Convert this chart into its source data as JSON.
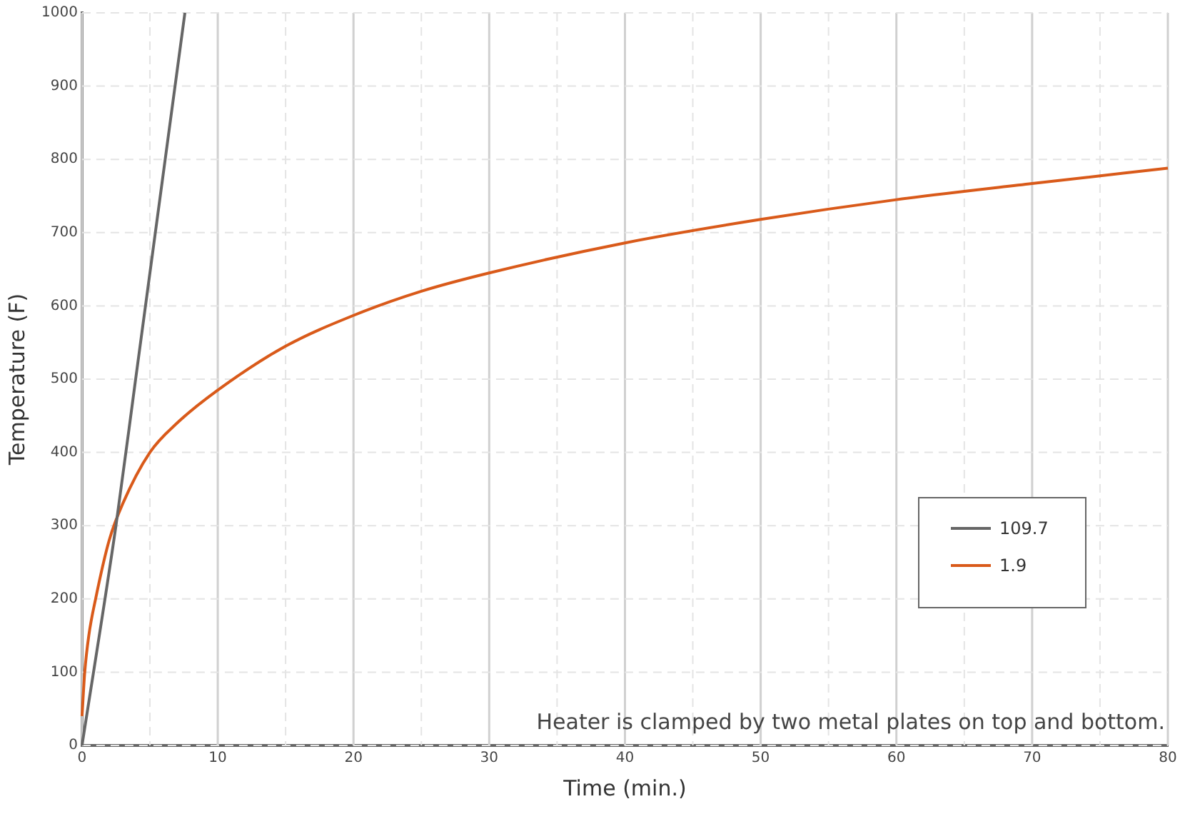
{
  "chart_data": {
    "type": "line",
    "xlabel": "Time (min.)",
    "ylabel": "Temperature (F)",
    "xlim": [
      0,
      80
    ],
    "xticks": [
      0,
      {
        "value": 5,
        "label": null
      },
      10,
      {
        "value": 15,
        "label": null
      },
      20,
      {
        "value": 25,
        "label": null
      },
      30,
      {
        "value": 35,
        "label": null
      },
      40,
      {
        "value": 45,
        "label": null
      },
      50,
      {
        "value": 55,
        "label": null
      },
      60,
      {
        "value": 65,
        "label": null
      },
      70,
      {
        "value": 75,
        "label": null
      },
      80
    ],
    "ylim": [
      0,
      1000
    ],
    "yticks": [
      0,
      100,
      200,
      300,
      400,
      500,
      600,
      700,
      800,
      900,
      1000
    ],
    "grid": true,
    "legend": "right",
    "marker": "none",
    "line_style": "solid",
    "annotations": [
      "Heater is clamped by two metal plates on top and bottom."
    ],
    "series": [
      {
        "name": "109.7",
        "color": "#666666",
        "x": [
          0,
          2.5,
          3.95,
          7.58
        ],
        "values": [
          0,
          300,
          500,
          1000
        ]
      },
      {
        "name": "1.9",
        "color": "#d95a1a",
        "x": [
          0,
          0.2,
          0.5,
          1,
          2,
          3,
          5,
          7,
          10,
          15,
          20,
          25,
          30,
          40,
          50,
          60,
          70,
          80
        ],
        "values": [
          40,
          100,
          150,
          200,
          280,
          330,
          400,
          440,
          485,
          545,
          587,
          620,
          645,
          686,
          718,
          745,
          767,
          788
        ]
      }
    ]
  }
}
